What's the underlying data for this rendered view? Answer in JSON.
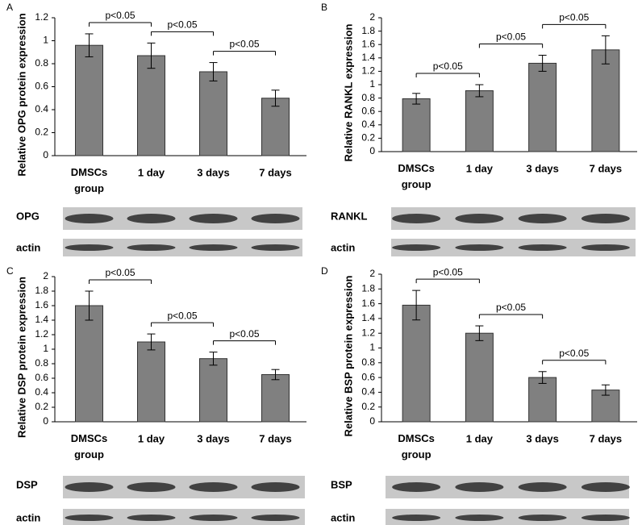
{
  "chart_data": [
    {
      "type": "bar",
      "panel_label": "A",
      "y_label": "Relative OPG protein expression",
      "categories": [
        "DMSCs group",
        "1 day",
        "3 days",
        "7 days"
      ],
      "values": [
        0.96,
        0.87,
        0.73,
        0.5
      ],
      "errors": [
        0.1,
        0.11,
        0.08,
        0.07
      ],
      "color": "#808080",
      "ylim": [
        0,
        1.2
      ],
      "yticks": [
        0,
        0.2,
        0.4,
        0.6,
        0.8,
        1,
        1.2
      ],
      "annotations": [
        "p<0.05",
        "p<0.05",
        "p<0.05"
      ],
      "blot_labels": [
        "OPG",
        "actin"
      ]
    },
    {
      "type": "bar",
      "panel_label": "B",
      "y_label": "Relative RANKL expression",
      "categories": [
        "DMSCs group",
        "1 day",
        "3 days",
        "7 days"
      ],
      "values": [
        0.79,
        0.91,
        1.32,
        1.52
      ],
      "errors": [
        0.08,
        0.09,
        0.12,
        0.21
      ],
      "color": "#808080",
      "ylim": [
        0,
        2
      ],
      "yticks": [
        0,
        0.2,
        0.4,
        0.6,
        0.8,
        1,
        1.2,
        1.4,
        1.6,
        1.8,
        2
      ],
      "annotations": [
        "p<0.05",
        "p<0.05",
        "p<0.05"
      ],
      "blot_labels": [
        "RANKL",
        "actin"
      ]
    },
    {
      "type": "bar",
      "panel_label": "C",
      "y_label": "Relative DSP protein expression",
      "categories": [
        "DMSCs group",
        "1 day",
        "3 days",
        "7 days"
      ],
      "values": [
        1.6,
        1.1,
        0.87,
        0.65
      ],
      "errors": [
        0.2,
        0.11,
        0.09,
        0.07
      ],
      "color": "#808080",
      "ylim": [
        0,
        2
      ],
      "yticks": [
        0,
        0.2,
        0.4,
        0.6,
        0.8,
        1,
        1.2,
        1.4,
        1.6,
        1.8,
        2
      ],
      "annotations": [
        "p<0.05",
        "p<0.05",
        "p<0.05"
      ],
      "blot_labels": [
        "DSP",
        "actin"
      ]
    },
    {
      "type": "bar",
      "panel_label": "D",
      "y_label": "Relative BSP protein expression",
      "categories": [
        "DMSCs group",
        "1 day",
        "3 days",
        "7 days"
      ],
      "values": [
        1.58,
        1.2,
        0.6,
        0.43
      ],
      "errors": [
        0.2,
        0.1,
        0.08,
        0.07
      ],
      "color": "#808080",
      "ylim": [
        0,
        2
      ],
      "yticks": [
        0,
        0.2,
        0.4,
        0.6,
        0.8,
        1,
        1.2,
        1.4,
        1.6,
        1.8,
        2
      ],
      "annotations": [
        "p<0.05",
        "p<0.05",
        "p<0.05"
      ],
      "blot_labels": [
        "BSP",
        "actin"
      ]
    }
  ]
}
